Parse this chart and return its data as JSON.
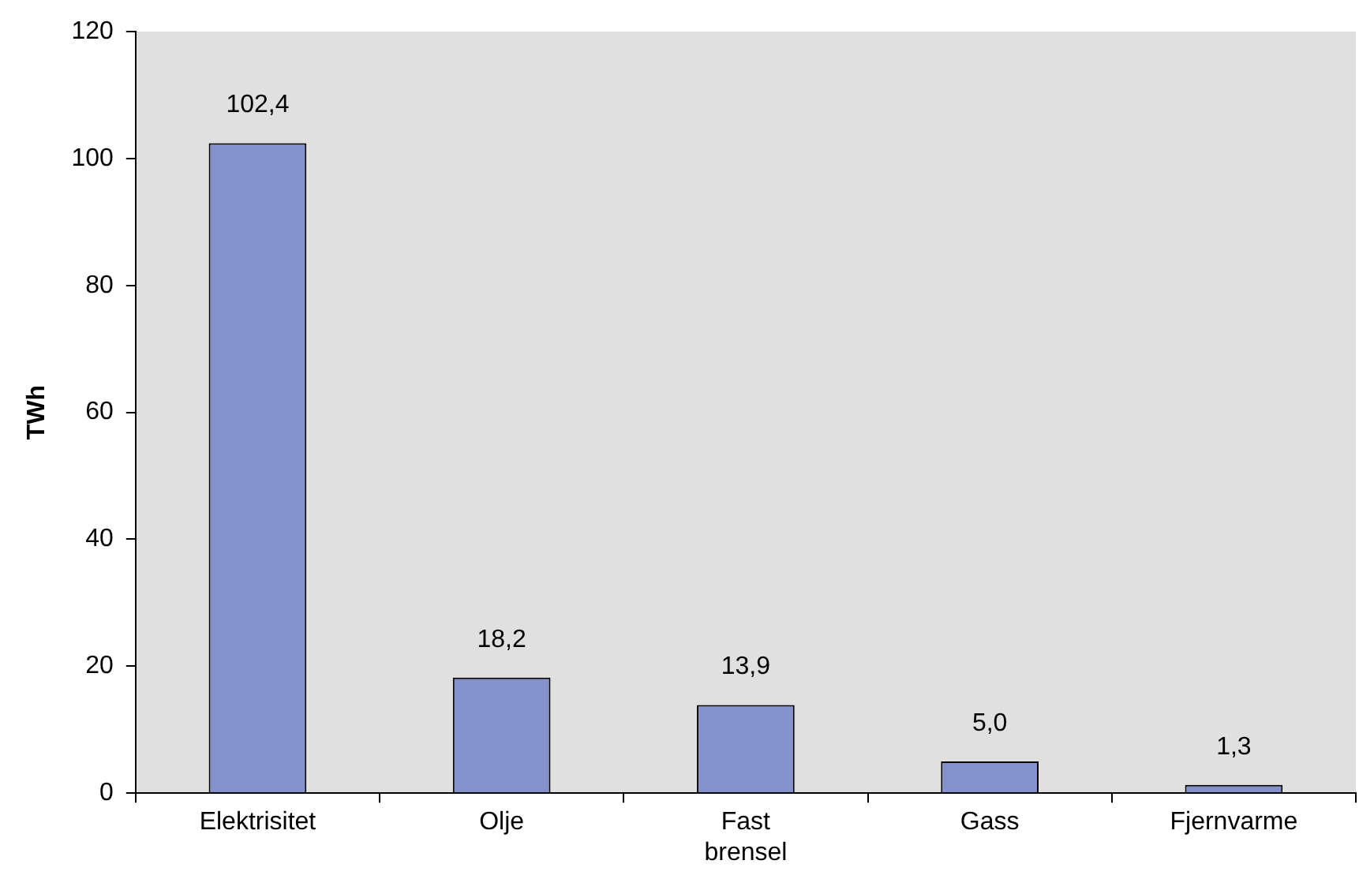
{
  "chart_data": {
    "type": "bar",
    "ylabel": "TWh",
    "categories": [
      "Elektrisitet",
      "Olje",
      "Fast brensel",
      "Gass",
      "Fjernvarme"
    ],
    "values": [
      102.4,
      18.2,
      13.9,
      5.0,
      1.3
    ],
    "value_labels": [
      "102,4",
      "18,2",
      "13,9",
      "5,0",
      "1,3"
    ],
    "color": "#8491cb",
    "ylim": [
      0,
      120
    ],
    "yticks": [
      0,
      20,
      40,
      60,
      80,
      100,
      120
    ],
    "grid": false,
    "legend": false
  }
}
